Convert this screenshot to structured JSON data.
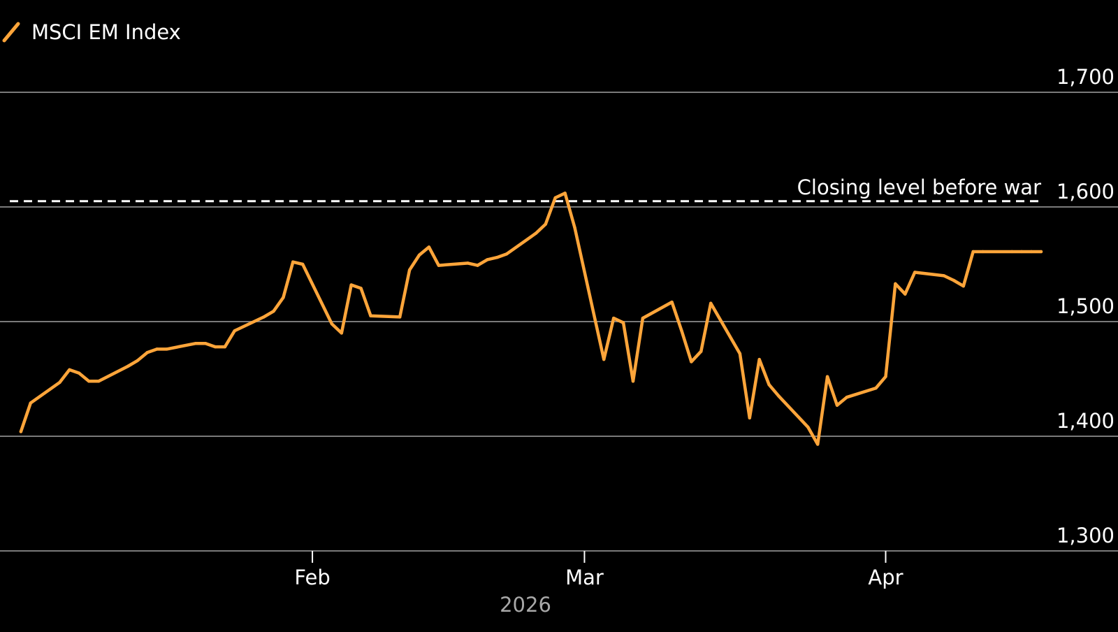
{
  "legend": {
    "label": "MSCI EM Index",
    "color": "#ffa53a"
  },
  "annotation": {
    "label": "Closing level before war",
    "value": 1605,
    "color": "#ffffff"
  },
  "axis_colors": {
    "grid": "#7a7a7a",
    "text": "#ffffff",
    "year_text": "#a8a8a8"
  },
  "chart_data": {
    "type": "line",
    "title": "",
    "xlabel": "2026",
    "ylabel": "",
    "ylim": [
      1300,
      1700
    ],
    "y_ticks": [
      1700,
      1600,
      1500,
      1400,
      1300
    ],
    "y_tick_labels": [
      "1,700",
      "1,600",
      "1,500",
      "1,400",
      "1,300"
    ],
    "x_ticks": [
      {
        "date": "2026-02-01",
        "label": "Feb"
      },
      {
        "date": "2026-03-01",
        "label": "Mar"
      },
      {
        "date": "2026-04-01",
        "label": "Apr"
      }
    ],
    "xlim": [
      "2026-01-01",
      "2026-04-17"
    ],
    "grid": true,
    "series": [
      {
        "name": "MSCI EM Index",
        "color": "#ffa53a",
        "x": [
          "2026-01-02",
          "2026-01-03",
          "2026-01-06",
          "2026-01-07",
          "2026-01-08",
          "2026-01-09",
          "2026-01-10",
          "2026-01-13",
          "2026-01-14",
          "2026-01-15",
          "2026-01-16",
          "2026-01-17",
          "2026-01-20",
          "2026-01-21",
          "2026-01-22",
          "2026-01-23",
          "2026-01-24",
          "2026-01-27",
          "2026-01-28",
          "2026-01-29",
          "2026-01-30",
          "2026-01-31",
          "2026-02-03",
          "2026-02-04",
          "2026-02-05",
          "2026-02-06",
          "2026-02-07",
          "2026-02-10",
          "2026-02-11",
          "2026-02-12",
          "2026-02-13",
          "2026-02-14",
          "2026-02-17",
          "2026-02-18",
          "2026-02-19",
          "2026-02-20",
          "2026-02-21",
          "2026-02-24",
          "2026-02-25",
          "2026-02-26",
          "2026-02-27",
          "2026-02-28",
          "2026-03-03",
          "2026-03-04",
          "2026-03-05",
          "2026-03-06",
          "2026-03-07",
          "2026-03-10",
          "2026-03-11",
          "2026-03-12",
          "2026-03-13",
          "2026-03-14",
          "2026-03-17",
          "2026-03-18",
          "2026-03-19",
          "2026-03-20",
          "2026-03-21",
          "2026-03-24",
          "2026-03-25",
          "2026-03-26",
          "2026-03-27",
          "2026-03-28",
          "2026-03-31",
          "2026-04-01",
          "2026-04-02",
          "2026-04-03",
          "2026-04-04",
          "2026-04-07",
          "2026-04-08",
          "2026-04-09",
          "2026-04-10",
          "2026-04-11",
          "2026-04-14",
          "2026-04-15",
          "2026-04-16",
          "2026-04-17"
        ],
        "y": [
          1404,
          1429,
          1447,
          1458,
          1455,
          1448,
          1448,
          1461,
          1466,
          1473,
          1476,
          1476,
          1481,
          1481,
          1478,
          1478,
          1492,
          1504,
          1509,
          1521,
          1552,
          1550,
          1498,
          1490,
          1532,
          1529,
          1505,
          1504,
          1545,
          1558,
          1565,
          1549,
          1551,
          1549,
          1554,
          1556,
          1559,
          1577,
          1585,
          1608,
          1612,
          1582,
          1467,
          1503,
          1499,
          1448,
          1503,
          1517,
          1492,
          1465,
          1474,
          1516,
          1472,
          1416,
          1467,
          1445,
          1435,
          1408,
          1393,
          1452,
          1427,
          1434,
          1442,
          1452,
          1533,
          1524,
          1543,
          1540,
          1536,
          1531,
          1561,
          1561,
          1561,
          1561,
          1561,
          1561
        ]
      }
    ]
  }
}
